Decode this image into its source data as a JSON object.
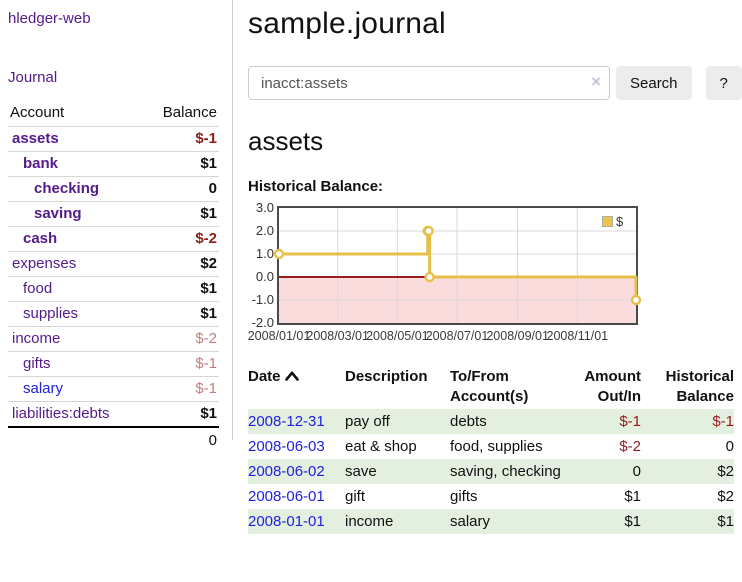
{
  "app": {
    "brand": "hledger-web"
  },
  "sidebar": {
    "journal_label": "Journal",
    "accounts": {
      "headers": [
        "Account",
        "Balance"
      ],
      "rows": [
        {
          "name": "assets",
          "balance": "$-1",
          "depth": 0,
          "matched": true,
          "balance_tone": "negative"
        },
        {
          "name": "bank",
          "balance": "$1",
          "depth": 1,
          "matched": true,
          "balance_tone": "normal"
        },
        {
          "name": "checking",
          "balance": "0",
          "depth": 2,
          "matched": true,
          "balance_tone": "normal"
        },
        {
          "name": "saving",
          "balance": "$1",
          "depth": 2,
          "matched": true,
          "balance_tone": "normal"
        },
        {
          "name": "cash",
          "balance": "$-2",
          "depth": 1,
          "matched": true,
          "balance_tone": "negative"
        },
        {
          "name": "expenses",
          "balance": "$2",
          "depth": 0,
          "matched": false,
          "balance_tone": "normal"
        },
        {
          "name": "food",
          "balance": "$1",
          "depth": 1,
          "matched": false,
          "balance_tone": "normal"
        },
        {
          "name": "supplies",
          "balance": "$1",
          "depth": 1,
          "matched": false,
          "balance_tone": "normal"
        },
        {
          "name": "income",
          "balance": "$-2",
          "depth": 0,
          "matched": false,
          "balance_tone": "negative-dim"
        },
        {
          "name": "gifts",
          "balance": "$-1",
          "depth": 1,
          "matched": false,
          "balance_tone": "negative-dim"
        },
        {
          "name": "salary",
          "balance": "$-1",
          "depth": 1,
          "matched": false,
          "balance_tone": "negative-dim",
          "link_tone": "unvisited"
        },
        {
          "name": "liabilities:debts",
          "balance": "$1",
          "depth": 0,
          "matched": false,
          "balance_tone": "normal"
        }
      ],
      "total": "0"
    }
  },
  "main": {
    "title": "sample.journal",
    "search": {
      "value": "inacct:assets",
      "clear_icon": "×",
      "search_button": "Search",
      "help_button": "?"
    },
    "account_heading": "assets",
    "chart_heading": "Historical Balance:"
  },
  "register": {
    "headers": [
      "Date",
      "Description",
      "To/From Account(s)",
      "Amount Out/In",
      "Historical Balance"
    ],
    "rows": [
      {
        "date": "2008-12-31",
        "description": "pay off",
        "accounts": "debts",
        "amount": "$-1",
        "balance": "$-1",
        "amount_tone": "negative",
        "balance_tone": "negative",
        "shaded": true
      },
      {
        "date": "2008-06-03",
        "description": "eat & shop",
        "accounts": "food, supplies",
        "amount": "$-2",
        "balance": "0",
        "amount_tone": "negative",
        "balance_tone": "normal",
        "shaded": false
      },
      {
        "date": "2008-06-02",
        "description": "save",
        "accounts": "saving, checking",
        "amount": "0",
        "balance": "$2",
        "amount_tone": "normal",
        "balance_tone": "normal",
        "shaded": true
      },
      {
        "date": "2008-06-01",
        "description": "gift",
        "accounts": "gifts",
        "amount": "$1",
        "balance": "$2",
        "amount_tone": "normal",
        "balance_tone": "normal",
        "shaded": false
      },
      {
        "date": "2008-01-01",
        "description": "income",
        "accounts": "salary",
        "amount": "$1",
        "balance": "$1",
        "amount_tone": "normal",
        "balance_tone": "normal",
        "shaded": true
      }
    ]
  },
  "chart_data": {
    "type": "line",
    "title": "Historical Balance:",
    "series": [
      {
        "name": "$",
        "step": "after",
        "points": [
          [
            "2008-01-01",
            1
          ],
          [
            "2008-06-01",
            2
          ],
          [
            "2008-06-02",
            2
          ],
          [
            "2008-06-03",
            0
          ],
          [
            "2008-12-31",
            -1
          ]
        ]
      }
    ],
    "xlim": [
      "2008-01-01",
      "2008-12-31"
    ],
    "ylim": [
      -2,
      3
    ],
    "y_ticks": [
      "3.0",
      "2.0",
      "1.0",
      "0.0",
      "-1.0",
      "-2.0"
    ],
    "x_ticks": [
      "2008/01/01",
      "2008/03/01",
      "2008/05/01",
      "2008/07/01",
      "2008/09/01",
      "2008/11/01"
    ],
    "legend": {
      "label": "$",
      "position": "top-right"
    },
    "grid": true
  },
  "colors": {
    "link_purple": "#551a8b",
    "link_blue": "#2222dd",
    "negative": "#8f1d1d",
    "negative_dim": "#c17f7f",
    "row_green": "#e3efdf",
    "chart_line": "#e6bf4a",
    "chart_negative_fill": "#fbdcdc",
    "chart_zero_line": "#a01c1c",
    "chart_grid": "#d9d9d9"
  }
}
